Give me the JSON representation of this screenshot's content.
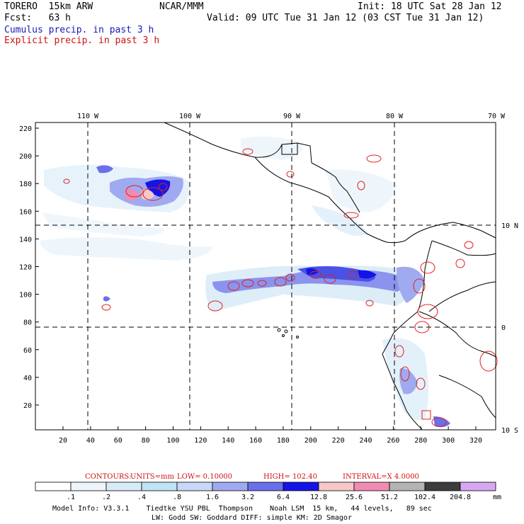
{
  "header": {
    "model": "TORERO  15km ARW",
    "center": "NCAR/MMM",
    "init": "Init: 18 UTC Sat 28 Jan 12",
    "fcst": "Fcst:   63 h",
    "valid": "Valid: 09 UTC Tue 31 Jan 12 (03 CST Tue 31 Jan 12)",
    "field1": "Cumulus precip. in past 3 h",
    "field2": "Explicit precip. in past 3 h"
  },
  "colors": {
    "field1": "#1a1ab4",
    "field2": "#d01010",
    "contour": "#e02020",
    "coast": "#000000"
  },
  "axes": {
    "top_lon_labels": [
      "110 W",
      "100 W",
      "90 W",
      "80 W",
      "70 W"
    ],
    "right_lat_labels": [
      "10 N",
      "0",
      "10 S"
    ],
    "left_y_ticks": [
      "20",
      "40",
      "60",
      "80",
      "100",
      "120",
      "140",
      "160",
      "180",
      "200",
      "220"
    ],
    "bottom_x_ticks": [
      "20",
      "40",
      "60",
      "80",
      "100",
      "120",
      "140",
      "160",
      "180",
      "200",
      "220",
      "240",
      "260",
      "280",
      "300",
      "320"
    ]
  },
  "contour_info": {
    "label": "CONTOURS:",
    "units": "UNITS=mm",
    "low": "LOW= 0.10000",
    "high": "HIGH=  102.40",
    "interval": "INTERVAL=X  4.0000"
  },
  "colorbar": {
    "labels": [
      ".1",
      ".2",
      ".4",
      ".8",
      "1.6",
      "3.2",
      "6.4",
      "12.8",
      "25.6",
      "51.2",
      "102.4",
      "204.8"
    ],
    "unit": "mm",
    "colors": [
      "#ffffff",
      "#eef6fb",
      "#d8ecf8",
      "#bfe4f4",
      "#c8d8f6",
      "#a0aaf0",
      "#6a70ea",
      "#1414e6",
      "#f8c8c8",
      "#f08cb4",
      "#b4b4b4",
      "#3c3c3c",
      "#d6a8f4"
    ]
  },
  "footer": {
    "line1": "Model Info: V3.3.1    Tiedtke YSU PBL  Thompson    Noah LSM  15 km,   44 levels,   89 sec",
    "line2": "LW: Godd SW: Goddard DIFF: simple KM: 2D Smagor"
  }
}
